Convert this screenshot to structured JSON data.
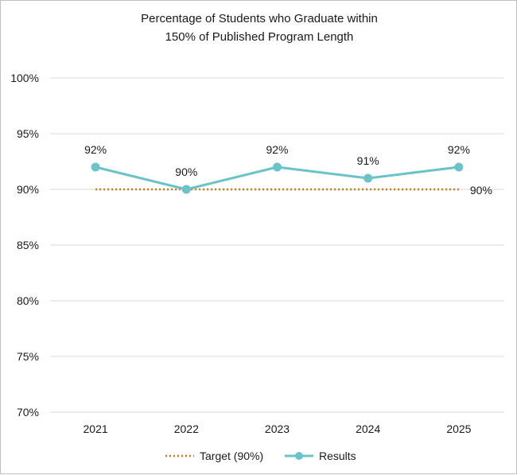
{
  "chart_data": {
    "type": "line",
    "title_lines": [
      "Percentage of Students who Graduate within",
      "150% of Published Program Length"
    ],
    "categories": [
      "2021",
      "2022",
      "2023",
      "2024",
      "2025"
    ],
    "series": [
      {
        "name": "Target (90%)",
        "values": [
          90,
          90,
          90,
          90,
          90
        ],
        "color": "#c07c10",
        "style": "dotted",
        "end_label": "90%"
      },
      {
        "name": "Results",
        "values": [
          92,
          90,
          92,
          91,
          92
        ],
        "color": "#6ac3c8",
        "style": "solid-with-markers",
        "data_labels": [
          "92%",
          "90%",
          "92%",
          "91%",
          "92%"
        ]
      }
    ],
    "ylim": [
      70,
      100
    ],
    "y_ticks": [
      70,
      75,
      80,
      85,
      90,
      95,
      100
    ],
    "y_tick_format": "%",
    "grid": "horizontal",
    "legend_position": "bottom"
  }
}
